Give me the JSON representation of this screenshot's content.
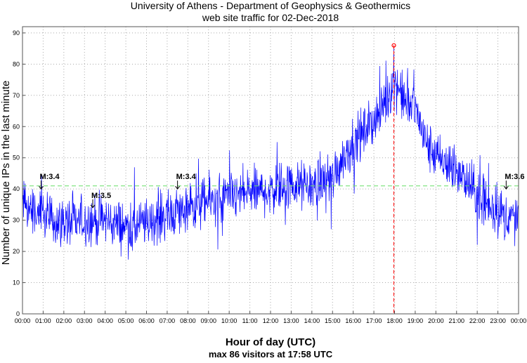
{
  "chart_data": {
    "type": "line",
    "title": "University of Athens - Department of Geophysics & Geothermics",
    "subtitle": "web site traffic for 02-Dec-2018",
    "xlabel": "Hour of day (UTC)",
    "ylabel": "Number of unique IPs in the last minute",
    "footer": "max 86 visitors at 17:58 UTC",
    "xlim_hours": [
      0,
      24
    ],
    "ylim": [
      0,
      92
    ],
    "grid": true,
    "x_tick_labels": [
      "00:00",
      "01:00",
      "02:00",
      "03:00",
      "04:00",
      "05:00",
      "06:00",
      "07:00",
      "08:00",
      "09:00",
      "10:00",
      "11:00",
      "12:00",
      "13:00",
      "14:00",
      "15:00",
      "16:00",
      "17:00",
      "18:00",
      "19:00",
      "20:00",
      "21:00",
      "22:00",
      "23:00",
      "00:00"
    ],
    "y_ticks": [
      0,
      10,
      20,
      30,
      40,
      50,
      60,
      70,
      80,
      90
    ],
    "series": [
      {
        "name": "unique IPs per minute",
        "color": "#0000ff",
        "profile_hours": [
          0,
          0.5,
          1,
          1.5,
          2,
          2.5,
          3,
          3.5,
          4,
          4.5,
          5,
          5.5,
          6,
          6.5,
          7,
          7.5,
          8,
          8.5,
          9,
          9.5,
          10,
          10.5,
          11,
          11.5,
          12,
          12.5,
          13,
          13.5,
          14,
          14.5,
          15,
          15.5,
          16,
          16.5,
          17,
          17.5,
          18,
          18.5,
          19,
          19.5,
          20,
          20.5,
          21,
          21.5,
          22,
          22.5,
          23,
          23.5,
          24
        ],
        "profile_values": [
          35,
          33,
          31,
          30,
          29,
          29,
          30,
          30,
          30,
          29,
          28,
          28,
          29,
          30,
          32,
          33,
          33,
          35,
          36,
          37,
          37,
          38,
          39,
          39,
          40,
          41,
          41,
          41,
          41,
          42,
          44,
          50,
          55,
          58,
          62,
          67,
          75,
          68,
          66,
          55,
          50,
          48,
          45,
          42,
          38,
          35,
          33,
          31,
          30
        ],
        "noise_amplitude": 6
      }
    ],
    "mean_line": {
      "value": 41,
      "color": "#66dd66"
    },
    "max_marker": {
      "hour": 17.967,
      "value": 86,
      "color": "#ff0000"
    },
    "annotations": [
      {
        "text": "M:3.4",
        "hour": 0.9,
        "value": 40
      },
      {
        "text": "M:3.5",
        "hour": 3.4,
        "value": 34
      },
      {
        "text": "M:3.4",
        "hour": 7.5,
        "value": 40
      },
      {
        "text": "M:3.6",
        "hour": 23.4,
        "value": 40
      }
    ]
  }
}
